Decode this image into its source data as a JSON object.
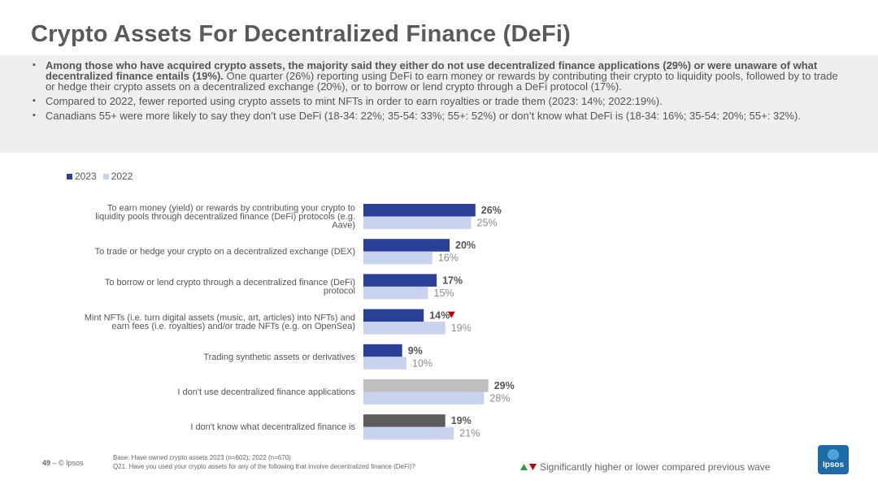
{
  "title": "Crypto Assets For Decentralized Finance (DeFi)",
  "summary": {
    "b1_bold": "Among those who have acquired crypto assets, the majority said they either do not use decentralized finance applications (29%) or were unaware of what decentralized finance entails (19%).",
    "b1_rest": " One quarter (26%) reporting using DeFi to earn money or rewards by contributing their crypto to liquidity pools, followed by to trade or hedge their crypto assets on a decentralized exchange (20%), or to borrow or lend crypto through a DeFi protocol (17%).",
    "b2": "Compared to 2022, fewer reported using crypto assets to mint NFTs in order to earn royalties or trade them (2023: 14%; 2022:19%).",
    "b3": "Canadians 55+ were more likely to say they don’t use DeFi (18-34: 22%; 35-54: 33%; 55+: 52%) or don’t know what DeFi is (18-34: 16%; 35-54: 20%; 55+: 32%)."
  },
  "legend": {
    "s2023": "2023",
    "s2022": "2022"
  },
  "colors": {
    "s2023": "#2a3f97",
    "s2022": "#c9d3f0",
    "s2022_label": "#8c8c8c",
    "grey_2023": "#bfbfbf",
    "dark_2023": "#5c5c5c",
    "down_marker": "#c00000",
    "up_marker": "#2e9e3e"
  },
  "chart_data": {
    "type": "bar",
    "orientation": "horizontal",
    "categories": [
      [
        "To earn money (yield) or rewards by contributing your crypto to",
        "liquidity pools through decentralized finance (DeFi) protocols (e.g.",
        "Aave)"
      ],
      [
        "To trade or hedge your crypto on a decentralized exchange (DEX)"
      ],
      [
        "To borrow or lend crypto through a decentralized finance (DeFi)",
        "protocol"
      ],
      [
        "Mint NFTs (i.e. turn digital assets (music, art, articles) into NFTs) and",
        "earn fees (i.e. royalties) and/or trade NFTs (e.g. on OpenSea)"
      ],
      [
        "Trading synthetic assets or derivatives"
      ],
      [
        "I don't use decentralized finance applications"
      ],
      [
        "I don't know what decentralized finance is"
      ]
    ],
    "series": [
      {
        "name": "2023",
        "values": [
          26,
          20,
          17,
          14,
          9,
          29,
          19
        ],
        "labels": [
          "26%",
          "20%",
          "17%",
          "14%",
          "9%",
          "29%",
          "19%"
        ]
      },
      {
        "name": "2022",
        "values": [
          25,
          16,
          15,
          19,
          10,
          28,
          21
        ],
        "labels": [
          "25%",
          "16%",
          "15%",
          "19%",
          "10%",
          "28%",
          "21%"
        ]
      }
    ],
    "bar_color_2023": [
      "s2023",
      "s2023",
      "s2023",
      "s2023",
      "s2023",
      "grey_2023",
      "dark_2023"
    ],
    "significance_2023": [
      "",
      "",
      "",
      "down",
      "",
      "",
      ""
    ],
    "xlim": [
      0,
      100
    ],
    "grid": false
  },
  "footer": {
    "page_number": "49",
    "separator": " – ",
    "copyright": "© Ipsos",
    "base": "Base: Have owned crypto assets 2023 (n=602); 2022 (n=670)",
    "question": "Q21. Have you used your crypto assets for any of the following that involve decentralized finance (DeFi)?",
    "significance_note": "Significantly higher or lower compared previous wave",
    "logo_text": "Ipsos"
  }
}
